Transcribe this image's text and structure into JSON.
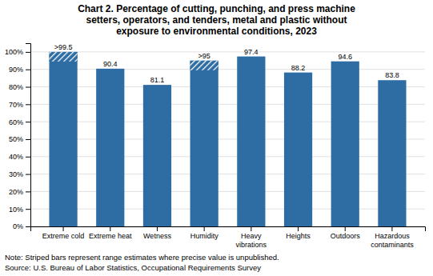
{
  "chart_data": {
    "type": "bar",
    "title": "Chart 2. Percentage of cutting, punching, and press machine\nsetters, operators, and tenders, metal and plastic without\nexposure to environmental conditions, 2023",
    "categories": [
      "Extreme cold",
      "Extreme heat",
      "Wetness",
      "Humidity",
      "Heavy\nvibrations",
      "Heights",
      "Outdoors",
      "Hazardous\ncontaminants"
    ],
    "values": [
      100,
      90.4,
      81.1,
      95,
      97.4,
      88.2,
      94.6,
      83.8
    ],
    "value_labels": [
      ">99.5",
      "90.4",
      "81.1",
      ">95",
      "97.4",
      "88.2",
      "94.6",
      "83.8"
    ],
    "data_labels": true,
    "striped": [
      true,
      false,
      false,
      true,
      false,
      false,
      false,
      false
    ],
    "color": "#2e6da4",
    "ylim": [
      0,
      105
    ],
    "yticks": [
      {
        "value": 0,
        "label": "0%"
      },
      {
        "value": 10,
        "label": "10%"
      },
      {
        "value": 20,
        "label": "20%"
      },
      {
        "value": 30,
        "label": "30%"
      },
      {
        "value": 40,
        "label": "40%"
      },
      {
        "value": 50,
        "label": "50%"
      },
      {
        "value": 60,
        "label": "60%"
      },
      {
        "value": 70,
        "label": "70%"
      },
      {
        "value": 80,
        "label": "80%"
      },
      {
        "value": 90,
        "label": "90%"
      },
      {
        "value": 100,
        "label": "100%"
      }
    ],
    "grid": true,
    "annotations": [
      "Note: Striped bars represent range estimates where precise value is unpublished.",
      "Source: U.S. Bureau of Labor Statistics, Occupational Requirements Survey"
    ]
  }
}
